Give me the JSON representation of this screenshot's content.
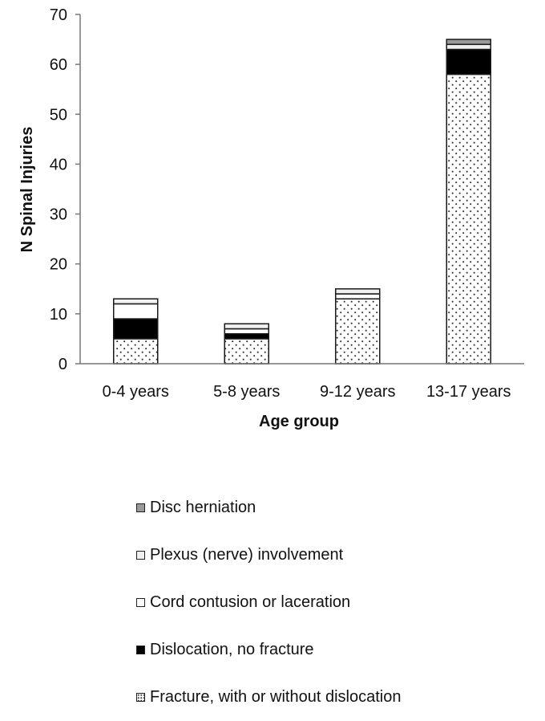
{
  "chart_data": {
    "type": "bar",
    "stacked": true,
    "categories": [
      "0-4 years",
      "5-8 years",
      "9-12 years",
      "13-17 years"
    ],
    "series": [
      {
        "name": "Fracture, with or without dislocation",
        "values": [
          5,
          5,
          13,
          58
        ],
        "fill": "dots",
        "color": "#ffffff"
      },
      {
        "name": "Dislocation, no fracture",
        "values": [
          4,
          1,
          0,
          5
        ],
        "fill": "solid",
        "color": "#000000"
      },
      {
        "name": "Cord contusion or laceration",
        "values": [
          3,
          1,
          1,
          0
        ],
        "fill": "solid",
        "color": "#ffffff"
      },
      {
        "name": "Plexus (nerve) involvement",
        "values": [
          1,
          1,
          1,
          1
        ],
        "fill": "solid",
        "color": "#f0f0f0"
      },
      {
        "name": "Disc herniation",
        "values": [
          0,
          0,
          0,
          1
        ],
        "fill": "solid",
        "color": "#9a9a9a"
      }
    ],
    "xlabel": "Age group",
    "ylabel": "N Spinal Injuries",
    "ylim": [
      0,
      70
    ],
    "yticks": [
      0,
      10,
      20,
      30,
      40,
      50,
      60,
      70
    ],
    "grid": false,
    "legend_position": "bottom",
    "legend_order": [
      "Disc herniation",
      "Plexus (nerve) involvement",
      "Cord contusion or laceration",
      "Dislocation, no fracture",
      "Fracture, with or without dislocation"
    ]
  }
}
